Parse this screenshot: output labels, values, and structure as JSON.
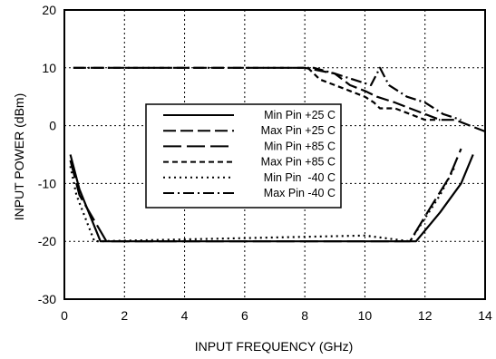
{
  "chart_data": {
    "type": "line",
    "title": "",
    "xlabel": "INPUT FREQUENCY (GHz)",
    "ylabel": "INPUT POWER (dBm)",
    "xlim": [
      0,
      14
    ],
    "ylim": [
      -30,
      20
    ],
    "xticks": [
      0,
      2,
      4,
      6,
      8,
      10,
      12,
      14
    ],
    "yticks": [
      -30,
      -20,
      -10,
      0,
      10,
      20
    ],
    "grid": true,
    "legend_position": "center",
    "series": [
      {
        "name": "Min Pin +25 C",
        "style": "solid",
        "x": [
          0.2,
          0.5,
          1.2,
          11.7,
          12.5,
          13.2,
          13.6
        ],
        "y": [
          -5,
          -11,
          -20,
          -20,
          -15,
          -10,
          -5
        ]
      },
      {
        "name": "Max Pin +25 C",
        "style": "dashed-long",
        "x": [
          0.3,
          8.0,
          9.0,
          9.5,
          10.0,
          10.4,
          11.0,
          11.5,
          12.0,
          12.5,
          13.0,
          13.5,
          14.0
        ],
        "y": [
          10,
          10,
          9,
          7,
          6,
          5,
          4,
          3,
          2,
          1,
          1,
          0,
          -1
        ]
      },
      {
        "name": "Min Pin +85 C",
        "style": "long-dash",
        "x": [
          0.2,
          0.5,
          1.4,
          11.5,
          12.2,
          12.8,
          13.2
        ],
        "y": [
          -6,
          -12,
          -20,
          -20,
          -14,
          -9,
          -4
        ]
      },
      {
        "name": "Max Pin +85 C",
        "style": "short-dash",
        "x": [
          8.1,
          8.5,
          9.0,
          9.5,
          10.0,
          10.3,
          10.5,
          11.0,
          11.5,
          12.0,
          12.5
        ],
        "y": [
          10,
          8,
          7,
          6,
          5,
          4,
          3,
          3,
          2,
          1,
          1
        ]
      },
      {
        "name": "Min Pin  -40 C",
        "style": "dotted",
        "x": [
          0.2,
          0.4,
          1.0,
          10.0,
          11.5,
          12.5,
          13.0
        ],
        "y": [
          -7,
          -12,
          -20,
          -19,
          -20,
          -12,
          -7
        ]
      },
      {
        "name": "Max Pin -40 C",
        "style": "dash-dot",
        "x": [
          0.3,
          8.3,
          9.0,
          9.6,
          10.2,
          10.5,
          10.8,
          11.4,
          12.0,
          12.6,
          13.2
        ],
        "y": [
          10,
          10,
          9,
          8,
          7,
          10,
          7,
          5,
          4,
          2,
          1
        ]
      }
    ]
  }
}
